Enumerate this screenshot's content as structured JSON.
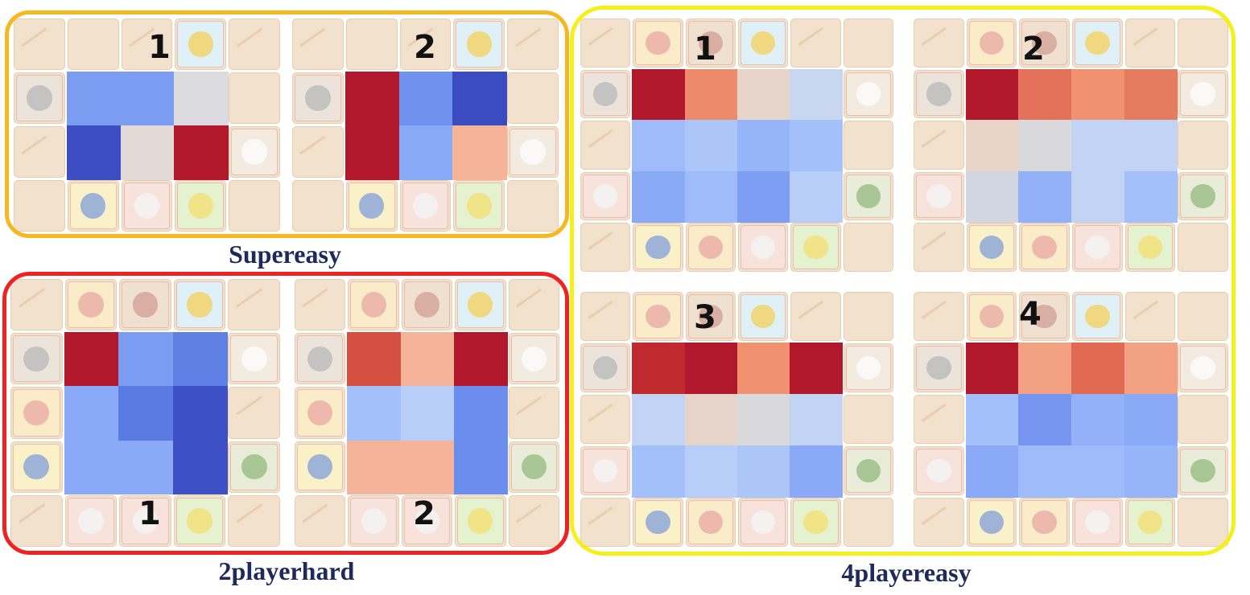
{
  "captions": {
    "supereasy": "Supereasy",
    "twoplayerhard": "2playerhard",
    "fourplayereasy": "4playereasy"
  },
  "colors": {
    "supereasy_frame": "#f5b820",
    "twoplayerhard_frame": "#ee2222",
    "fourplayereasy_frame": "#f5ef1a",
    "counter_tile": "#f2e1cd",
    "heat_high": "#b2182b",
    "heat_low": "#3b4cc0"
  },
  "panels": [
    {
      "id": "supereasy-1",
      "label": "1",
      "map": "supereasy",
      "heatmap": [
        [
          "#7a9cf1",
          "#7a9cf1",
          "#dcdbe0"
        ],
        [
          "#3d4ec4",
          "#e2d8d6",
          "#b2182b"
        ]
      ]
    },
    {
      "id": "supereasy-2",
      "label": "2",
      "map": "supereasy",
      "heatmap": [
        [
          "#b2182b",
          "#6f92ee",
          "#3b4cc0"
        ],
        [
          "#b2182b",
          "#89abf7",
          "#f5b49a"
        ]
      ]
    },
    {
      "id": "twoplayerhard-1",
      "label": "1",
      "map": "twoplayerhard",
      "heatmap": [
        [
          "#b2182b",
          "#7a9cf1",
          "#5e7fe4"
        ],
        [
          "#8aaaf7",
          "#5a7ce2",
          "#3d50c6"
        ],
        [
          "#8aaaf7",
          "#8aaaf7",
          "#3d50c6"
        ]
      ]
    },
    {
      "id": "twoplayerhard-2",
      "label": "2",
      "map": "twoplayerhard",
      "heatmap": [
        [
          "#d55040",
          "#f5b49a",
          "#b2182b"
        ],
        [
          "#a4c0fa",
          "#b8cdf7",
          "#6b8ded"
        ],
        [
          "#f5b49a",
          "#f5b49a",
          "#6b8ded"
        ]
      ]
    },
    {
      "id": "fourplayereasy-1",
      "label": "1",
      "map": "fourplayereasy",
      "heatmap": [
        [
          "#b2182b",
          "#ee8a6c",
          "#e6d3c9",
          "#c9d6ef"
        ],
        [
          "#9fbbfa",
          "#adc6f8",
          "#96b4f8",
          "#a4c0fa"
        ],
        [
          "#8aaaf7",
          "#9fbbfa",
          "#7d9ef2",
          "#b8cdf7"
        ]
      ]
    },
    {
      "id": "fourplayereasy-2",
      "label": "2",
      "map": "fourplayereasy",
      "heatmap": [
        [
          "#b2182b",
          "#e4725a",
          "#f0916f",
          "#e67c5f"
        ],
        [
          "#e9d3c6",
          "#d9d9dc",
          "#c2d3f3",
          "#c2d3f3"
        ],
        [
          "#d2d6e0",
          "#92b1f8",
          "#c2d3f3",
          "#a4c0fa"
        ]
      ]
    },
    {
      "id": "fourplayereasy-3",
      "label": "3",
      "map": "fourplayereasy",
      "heatmap": [
        [
          "#c02a2e",
          "#b2182b",
          "#f0916f",
          "#b2182b"
        ],
        [
          "#c2d3f3",
          "#e6d3c9",
          "#d9d9dc",
          "#c2d3f3"
        ],
        [
          "#a4c0fa",
          "#b8cdf7",
          "#adc6f8",
          "#8aaaf7"
        ]
      ]
    },
    {
      "id": "fourplayereasy-4",
      "label": "4",
      "map": "fourplayereasy",
      "heatmap": [
        [
          "#b2182b",
          "#f3a183",
          "#e06a52",
          "#f3a183"
        ],
        [
          "#a4c0fa",
          "#7595f0",
          "#92b1f8",
          "#8aaaf7"
        ],
        [
          "#8aaaf7",
          "#9fbbfa",
          "#9fbbfa",
          "#96b4f8"
        ]
      ]
    }
  ]
}
